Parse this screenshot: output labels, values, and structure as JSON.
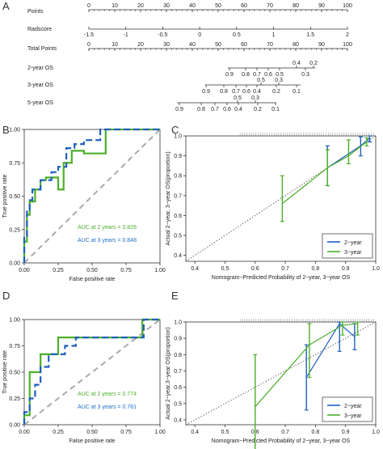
{
  "panels": {
    "A": "A",
    "B": "B",
    "C": "C",
    "D": "D",
    "E": "E"
  },
  "nomogram": {
    "rows": [
      {
        "label": "Points",
        "ticks": [
          "0",
          "10",
          "20",
          "30",
          "40",
          "50",
          "60",
          "70",
          "80",
          "90",
          "100"
        ]
      },
      {
        "label": "Radscore",
        "ticks": [
          "-1.5",
          "-1",
          "-0.5",
          "0",
          "0.5",
          "1",
          "1.5",
          "2"
        ]
      },
      {
        "label": "Total Points",
        "ticks": [
          "0",
          "10",
          "20",
          "30",
          "40",
          "50",
          "60",
          "70",
          "80",
          "90",
          "100"
        ]
      },
      {
        "label": "2-year OS",
        "ticks_top": [
          "0.4",
          "0.2"
        ],
        "ticks_bottom": [
          "0.9",
          "0.8",
          "0.7",
          "0.6",
          "0.5",
          "0.3"
        ]
      },
      {
        "label": "3-year OS",
        "ticks_top": [
          "0.5",
          "0.3"
        ],
        "ticks_bottom": [
          "0.9",
          "0.8",
          "0.7",
          "0.6",
          "0.4",
          "0.2",
          "0.1"
        ]
      },
      {
        "label": "5-year OS",
        "ticks_top": [
          "0.5",
          "0.3"
        ],
        "ticks_bottom": [
          "0.9",
          "0.8",
          "0.7",
          "0.6",
          "0.4",
          "0.2",
          "0.1"
        ]
      }
    ]
  },
  "colors": {
    "green": "#4daf2a",
    "blue": "#1f5fbf",
    "gray": "#aaaaaa",
    "lightblue": "#1e6fc8"
  },
  "chart_data": [
    {
      "panel": "B",
      "type": "line",
      "xlabel": "False positive rate",
      "ylabel": "True positive rate",
      "xlim": [
        0,
        1
      ],
      "ylim": [
        0,
        1
      ],
      "xticks": [
        "0.00",
        "0.25",
        "0.50",
        "0.75",
        "1.00"
      ],
      "yticks": [
        "0.00",
        "0.25",
        "0.50",
        "0.75",
        "1.00"
      ],
      "annotations": [
        "AUC at 2 years = 0.826",
        "AUC at 3 years = 0.848"
      ],
      "series": [
        {
          "style": "solid green",
          "x": [
            0,
            0,
            0.02,
            0.02,
            0.04,
            0.04,
            0.08,
            0.08,
            0.12,
            0.12,
            0.16,
            0.16,
            0.25,
            0.25,
            0.29,
            0.29,
            0.35,
            0.35,
            0.44,
            0.44,
            0.6,
            0.6,
            1
          ],
          "y": [
            0,
            0.16,
            0.16,
            0.36,
            0.36,
            0.46,
            0.46,
            0.55,
            0.55,
            0.62,
            0.62,
            0.64,
            0.64,
            0.55,
            0.55,
            0.75,
            0.75,
            0.84,
            0.84,
            0.82,
            0.82,
            1,
            1
          ]
        },
        {
          "style": "dashed blue",
          "x": [
            0,
            0,
            0.02,
            0.02,
            0.04,
            0.04,
            0.06,
            0.06,
            0.12,
            0.12,
            0.2,
            0.2,
            0.25,
            0.25,
            0.31,
            0.31,
            0.37,
            0.37,
            0.44,
            0.44,
            0.56,
            0.56,
            1
          ],
          "y": [
            0,
            0.2,
            0.2,
            0.4,
            0.4,
            0.47,
            0.47,
            0.55,
            0.55,
            0.62,
            0.62,
            0.68,
            0.68,
            0.72,
            0.72,
            0.86,
            0.86,
            0.89,
            0.89,
            0.92,
            0.92,
            1,
            1
          ]
        }
      ]
    },
    {
      "panel": "C",
      "type": "line",
      "xlabel": "Nomogram−Predicted Probability of 2−year, 3−year OS",
      "ylabel": "Actual 2−year, 3−year OS(proportion)",
      "xlim": [
        0.37,
        1.0
      ],
      "ylim": [
        0.37,
        1.0
      ],
      "xticks": [
        "0.4",
        "0.5",
        "0.6",
        "0.7",
        "0.8",
        "0.9",
        "1.0"
      ],
      "yticks": [
        "0.4",
        "0.5",
        "0.6",
        "0.7",
        "0.8",
        "0.9",
        "1.0"
      ],
      "legend": [
        "2−year",
        "3−year"
      ],
      "legend_position": "bottom-right",
      "series": [
        {
          "name": "2−year",
          "x": [
            0.84,
            0.95,
            0.98
          ],
          "y": [
            0.84,
            0.95,
            0.99
          ],
          "err_low": [
            0.75,
            0.9,
            0.97
          ],
          "err_high": [
            0.95,
            0.995,
            1.0
          ]
        },
        {
          "name": "3−year",
          "x": [
            0.69,
            0.84,
            0.91,
            0.97
          ],
          "y": [
            0.66,
            0.84,
            0.9,
            0.97
          ],
          "err_low": [
            0.57,
            0.75,
            0.86,
            0.95
          ],
          "err_high": [
            0.8,
            0.93,
            0.98,
            0.99
          ]
        }
      ]
    },
    {
      "panel": "D",
      "type": "line",
      "xlabel": "False positive rate",
      "ylabel": "True positive rate",
      "xlim": [
        0,
        1
      ],
      "ylim": [
        0,
        1
      ],
      "xticks": [
        "0.00",
        "0.25",
        "0.50",
        "0.75",
        "1.00"
      ],
      "yticks": [
        "0.00",
        "0.25",
        "0.50",
        "0.75",
        "1.00"
      ],
      "annotations": [
        "AUC at 2 years = 0.774",
        "AUC at 3 years = 0.781"
      ],
      "series": [
        {
          "style": "solid green",
          "x": [
            0,
            0,
            0.04,
            0.04,
            0.12,
            0.12,
            0.25,
            0.25,
            0.4,
            0.4,
            0.5,
            0.5,
            0.87,
            0.87,
            1
          ],
          "y": [
            0,
            0.09,
            0.09,
            0.5,
            0.5,
            0.67,
            0.67,
            0.83,
            0.83,
            0.83,
            0.83,
            0.83,
            0.83,
            1,
            1
          ]
        },
        {
          "style": "dashed blue",
          "x": [
            0,
            0,
            0.04,
            0.04,
            0.08,
            0.08,
            0.12,
            0.12,
            0.18,
            0.18,
            0.3,
            0.3,
            0.38,
            0.38,
            0.88,
            0.88,
            1
          ],
          "y": [
            0,
            0.12,
            0.12,
            0.25,
            0.25,
            0.38,
            0.38,
            0.55,
            0.55,
            0.67,
            0.67,
            0.75,
            0.75,
            0.83,
            0.83,
            1,
            1
          ]
        }
      ]
    },
    {
      "panel": "E",
      "type": "line",
      "xlabel": "Nomogram−Predicted Probability of 2−year, 3−year OS",
      "ylabel": "Actual 2−year,3−year OS(proportion)",
      "xlim": [
        0.37,
        1.0
      ],
      "ylim": [
        0.37,
        1.0
      ],
      "xticks": [
        "0.4",
        "0.5",
        "0.6",
        "0.7",
        "0.8",
        "0.9",
        "1.0"
      ],
      "yticks": [
        "0.4",
        "0.5",
        "0.6",
        "0.7",
        "0.8",
        "0.9",
        "1.0"
      ],
      "legend": [
        "2−year",
        "3−year"
      ],
      "legend_position": "bottom-right",
      "series": [
        {
          "name": "2−year",
          "x": [
            0.77,
            0.88,
            0.93
          ],
          "y": [
            0.66,
            0.99,
            0.91
          ],
          "err_low": [
            0.46,
            0.82,
            0.83
          ],
          "err_high": [
            0.86,
            1.0,
            0.99
          ]
        },
        {
          "name": "3−year",
          "x": [
            0.6,
            0.78,
            0.89,
            0.94
          ],
          "y": [
            0.48,
            0.86,
            0.98,
            0.99
          ],
          "err_low": [
            0.16,
            0.66,
            0.92,
            0.92
          ],
          "err_high": [
            0.8,
            0.99,
            1.0,
            1.0
          ]
        }
      ]
    }
  ]
}
